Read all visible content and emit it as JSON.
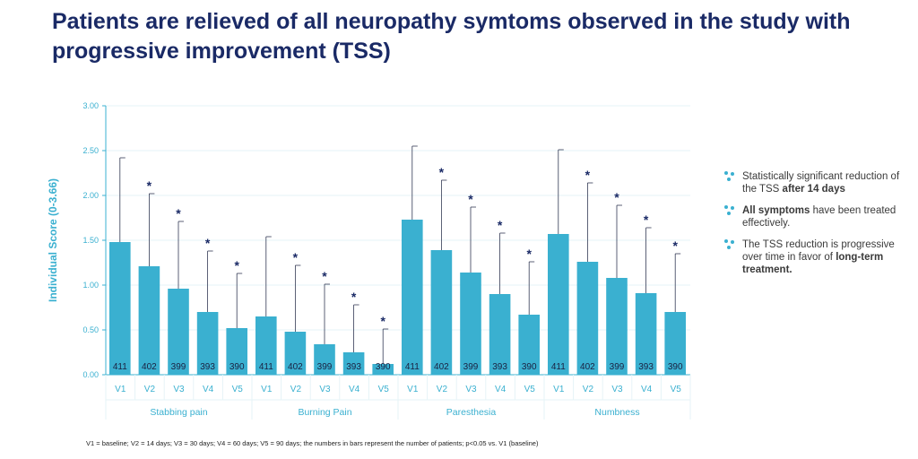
{
  "slide": {
    "title": "Patients are relieved of all neuropathy symtoms observed in the study with progressive improvement (TSS)"
  },
  "colors": {
    "bar": "#3ab0d0",
    "axis": "#3ab0d0",
    "title": "#1a2a66",
    "grid": "#e6f3f7"
  },
  "chart_data": {
    "type": "bar",
    "ylabel": "Individual Score (0-3.66)",
    "ylim": [
      0,
      3
    ],
    "yticks": [
      "0.00",
      "0.50",
      "1.00",
      "1.50",
      "2.00",
      "2.50",
      "3.00"
    ],
    "groups": [
      {
        "name": "Stabbing pain",
        "categories": [
          "V1",
          "V2",
          "V3",
          "V4",
          "V5"
        ],
        "values": [
          1.48,
          1.21,
          0.96,
          0.7,
          0.52
        ],
        "error_upper": [
          2.42,
          2.02,
          1.71,
          1.38,
          1.13
        ],
        "patients": [
          "411",
          "402",
          "399",
          "393",
          "390"
        ],
        "significant": [
          false,
          true,
          true,
          true,
          true
        ]
      },
      {
        "name": "Burning Pain",
        "categories": [
          "V1",
          "V2",
          "V3",
          "V4",
          "V5"
        ],
        "values": [
          0.65,
          0.48,
          0.34,
          0.25,
          0.12
        ],
        "error_upper": [
          1.54,
          1.22,
          1.01,
          0.78,
          0.51
        ],
        "patients": [
          "411",
          "402",
          "399",
          "393",
          "390"
        ],
        "significant": [
          false,
          true,
          true,
          true,
          true
        ]
      },
      {
        "name": "Paresthesia",
        "categories": [
          "V1",
          "V2",
          "V3",
          "V4",
          "V5"
        ],
        "values": [
          1.73,
          1.39,
          1.14,
          0.9,
          0.67
        ],
        "error_upper": [
          2.55,
          2.17,
          1.87,
          1.58,
          1.26
        ],
        "patients": [
          "411",
          "402",
          "399",
          "393",
          "390"
        ],
        "significant": [
          false,
          true,
          true,
          true,
          true
        ]
      },
      {
        "name": "Numbness",
        "categories": [
          "V1",
          "V2",
          "V3",
          "V4",
          "V5"
        ],
        "values": [
          1.57,
          1.26,
          1.08,
          0.91,
          0.7
        ],
        "error_upper": [
          2.51,
          2.14,
          1.89,
          1.64,
          1.35
        ],
        "patients": [
          "411",
          "402",
          "399",
          "393",
          "390"
        ],
        "significant": [
          false,
          true,
          true,
          true,
          true
        ]
      }
    ],
    "significance_marker": "*",
    "footnote": "V1 = baseline; V2 = 14 days; V3 = 30 days; V4 = 60 days; V5 = 90 days; the numbers in bars represent the number of patients; p<0.05 vs. V1 (baseline)"
  },
  "bullets": [
    {
      "text": "Statistically significant reduction of the TSS ",
      "bold": "after 14 days",
      "after": ""
    },
    {
      "text": "",
      "bold": "All symptoms",
      "after": " have been treated effectively."
    },
    {
      "text": "The TSS reduction is progressive over time in favor of ",
      "bold": "long-term treatment.",
      "after": ""
    }
  ]
}
